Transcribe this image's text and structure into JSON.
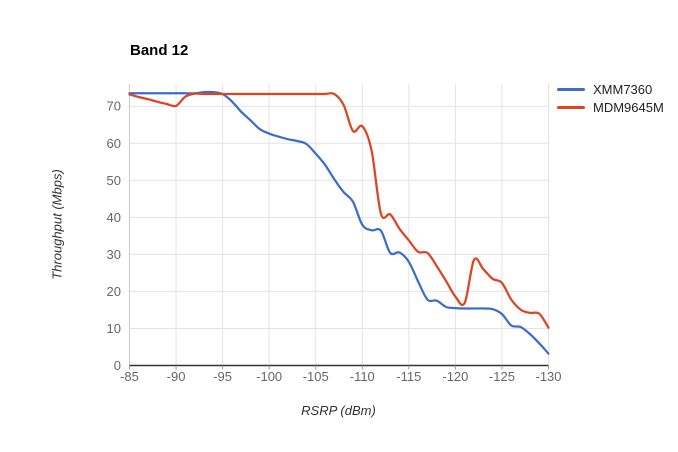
{
  "chart_data": {
    "type": "line",
    "title": "Band 12",
    "xlabel": "RSRP (dBm)",
    "ylabel": "Throughput (Mbps)",
    "x": [
      -85,
      -86,
      -87,
      -88,
      -89,
      -90,
      -91,
      -92,
      -93,
      -94,
      -95,
      -96,
      -97,
      -98,
      -99,
      -100,
      -101,
      -102,
      -103,
      -104,
      -105,
      -106,
      -107,
      -108,
      -109,
      -110,
      -111,
      -112,
      -113,
      -114,
      -115,
      -116,
      -117,
      -118,
      -119,
      -120,
      -121,
      -122,
      -123,
      -124,
      -125,
      -126,
      -127,
      -128,
      -129,
      -130
    ],
    "series": [
      {
        "name": "XMM7360",
        "color": "#3E6DC9",
        "values": [
          73.5,
          73.5,
          73.5,
          73.5,
          73.5,
          73.5,
          73.5,
          73.5,
          73.8,
          73.8,
          73.3,
          71.3,
          68.5,
          66.2,
          63.8,
          62.6,
          61.8,
          61.1,
          60.6,
          59.8,
          57.2,
          54.2,
          50.3,
          46.8,
          44.2,
          38.0,
          36.5,
          36.4,
          30.4,
          30.5,
          28.0,
          22.7,
          17.8,
          17.5,
          15.8,
          15.5,
          15.4,
          15.4,
          15.4,
          15.2,
          13.9,
          10.8,
          10.4,
          8.5,
          6.0,
          3.2
        ]
      },
      {
        "name": "MDM9645M",
        "color": "#DC4522",
        "values": [
          73.2,
          72.5,
          71.9,
          71.2,
          70.6,
          70.1,
          72.6,
          73.4,
          73.3,
          73.3,
          73.3,
          73.3,
          73.3,
          73.3,
          73.3,
          73.3,
          73.3,
          73.3,
          73.3,
          73.3,
          73.3,
          73.3,
          73.3,
          70.3,
          63.3,
          64.6,
          58.0,
          41.0,
          40.8,
          36.9,
          33.8,
          30.7,
          30.4,
          26.8,
          22.8,
          18.6,
          16.9,
          28.5,
          26.0,
          23.4,
          22.3,
          17.8,
          15.1,
          14.2,
          14.0,
          10.2
        ]
      }
    ],
    "xlim": [
      -85,
      -130
    ],
    "ylim": [
      0,
      76
    ],
    "xticks": [
      -85,
      -90,
      -95,
      -100,
      -105,
      -110,
      -115,
      -120,
      -125,
      -130
    ],
    "yticks": [
      0,
      10,
      20,
      30,
      40,
      50,
      60,
      70
    ],
    "grid": true,
    "legend_position": "top-right",
    "colors": {
      "grid": "#e3e3e3",
      "axis_bottom": "#333333",
      "axis_left": "#cccccc",
      "tick": "#999999",
      "tick_label": "#666666"
    }
  }
}
